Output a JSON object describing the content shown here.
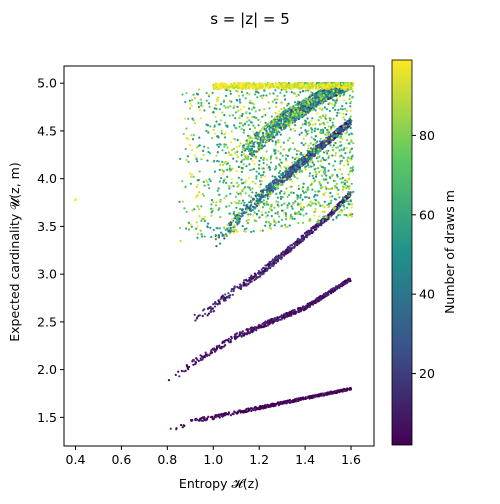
{
  "chart_data": {
    "type": "scatter",
    "title": "s = |z| =  5",
    "xlabel": "Entropy 𝓗(z)",
    "ylabel": "Expected cardinality 𝓤(z, m)",
    "xlim": [
      0.35,
      1.7
    ],
    "ylim": [
      1.2,
      5.18
    ],
    "xticks": [
      "0.4",
      "0.6",
      "0.8",
      "1.0",
      "1.2",
      "1.4",
      "1.6"
    ],
    "yticks": [
      "1.5",
      "2.0",
      "2.5",
      "3.0",
      "3.5",
      "4.0",
      "4.5",
      "5.0"
    ],
    "grid": false,
    "colorbar": {
      "label": "Number of draws m",
      "range": [
        2,
        99
      ],
      "ticks": [
        "20",
        "40",
        "60",
        "80"
      ],
      "colormap": "viridis"
    },
    "series": [
      {
        "band": 1,
        "x": [
          0.8,
          0.85,
          0.9,
          0.95,
          1.0,
          1.1,
          1.2,
          1.3,
          1.4,
          1.5,
          1.6
        ],
        "y": [
          1.37,
          1.4,
          1.45,
          1.48,
          1.5,
          1.55,
          1.6,
          1.65,
          1.7,
          1.75,
          1.8
        ]
      },
      {
        "band": 2,
        "x": [
          0.8,
          0.9,
          1.0,
          1.1,
          1.2,
          1.3,
          1.4,
          1.5,
          1.6
        ],
        "y": [
          1.87,
          2.05,
          2.2,
          2.35,
          2.45,
          2.55,
          2.65,
          2.8,
          2.95
        ]
      },
      {
        "band": 3,
        "x": [
          0.9,
          1.0,
          1.1,
          1.2,
          1.3,
          1.4,
          1.5,
          1.6
        ],
        "y": [
          2.5,
          2.65,
          2.85,
          3.0,
          3.2,
          3.4,
          3.6,
          3.85
        ]
      },
      {
        "band": 4,
        "x": [
          1.0,
          1.1,
          1.2,
          1.3,
          1.4,
          1.5,
          1.6
        ],
        "y": [
          3.3,
          3.55,
          3.8,
          4.0,
          4.2,
          4.4,
          4.6
        ]
      },
      {
        "band": 5,
        "x": [
          1.1,
          1.2,
          1.3,
          1.4,
          1.5,
          1.6
        ],
        "y": [
          4.2,
          4.4,
          4.6,
          4.75,
          4.9,
          5.0
        ]
      },
      {
        "band": "outlier",
        "x": [
          0.4
        ],
        "y": [
          3.78
        ]
      }
    ]
  }
}
